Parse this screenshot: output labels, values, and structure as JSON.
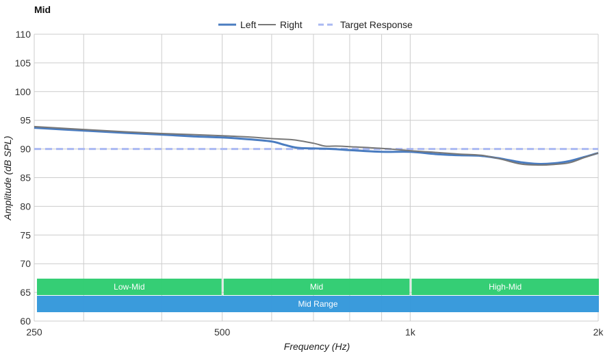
{
  "chart_data": {
    "type": "line",
    "title": "Mid",
    "xlabel": "Frequency (Hz)",
    "ylabel": "Amplitude (dB SPL)",
    "x_scale": "log",
    "xlim": [
      250,
      2000
    ],
    "ylim": [
      60,
      110
    ],
    "x_ticks": [
      {
        "value": 250,
        "label": "250"
      },
      {
        "value": 500,
        "label": "500"
      },
      {
        "value": 1000,
        "label": "1k"
      },
      {
        "value": 2000,
        "label": "2k"
      }
    ],
    "x_gridlines": [
      250,
      300,
      400,
      500,
      600,
      700,
      800,
      900,
      1000,
      2000
    ],
    "y_ticks": [
      60,
      65,
      70,
      75,
      80,
      85,
      90,
      95,
      100,
      105,
      110
    ],
    "grid": true,
    "legend_position": "top-center",
    "series": [
      {
        "name": "Left",
        "color": "#4a7cc0",
        "style": "solid-thick",
        "x": [
          250,
          300,
          350,
          400,
          450,
          500,
          550,
          600,
          630,
          660,
          700,
          750,
          800,
          900,
          1000,
          1100,
          1200,
          1300,
          1400,
          1500,
          1600,
          1700,
          1800,
          1900,
          2000
        ],
        "y": [
          93.7,
          93.2,
          92.8,
          92.5,
          92.2,
          92.0,
          91.7,
          91.3,
          90.7,
          90.2,
          90.1,
          90.0,
          89.8,
          89.5,
          89.5,
          89.1,
          88.9,
          88.8,
          88.3,
          87.7,
          87.4,
          87.5,
          87.9,
          88.6,
          89.3
        ]
      },
      {
        "name": "Right",
        "color": "#777777",
        "style": "solid",
        "x": [
          250,
          300,
          350,
          400,
          450,
          500,
          550,
          600,
          650,
          700,
          730,
          760,
          800,
          900,
          1000,
          1100,
          1200,
          1300,
          1400,
          1500,
          1600,
          1700,
          1800,
          1900,
          2000
        ],
        "y": [
          93.9,
          93.4,
          93.0,
          92.7,
          92.5,
          92.3,
          92.1,
          91.8,
          91.6,
          91.0,
          90.5,
          90.5,
          90.4,
          90.1,
          89.7,
          89.4,
          89.1,
          88.9,
          88.2,
          87.4,
          87.2,
          87.3,
          87.6,
          88.5,
          89.3
        ]
      },
      {
        "name": "Target Response",
        "color": "#a9b8f2",
        "style": "dashed",
        "x": [
          250,
          2000
        ],
        "y": [
          90,
          90
        ]
      }
    ],
    "bands": [
      {
        "label": "Low-Mid",
        "from": 250,
        "to": 500,
        "color": "#2ecc71"
      },
      {
        "label": "Mid",
        "from": 500,
        "to": 1000,
        "color": "#2ecc71"
      },
      {
        "label": "High-Mid",
        "from": 1000,
        "to": 2000,
        "color": "#2ecc71"
      },
      {
        "label": "Mid Range",
        "from": 250,
        "to": 2000,
        "color": "#3498db"
      }
    ]
  }
}
